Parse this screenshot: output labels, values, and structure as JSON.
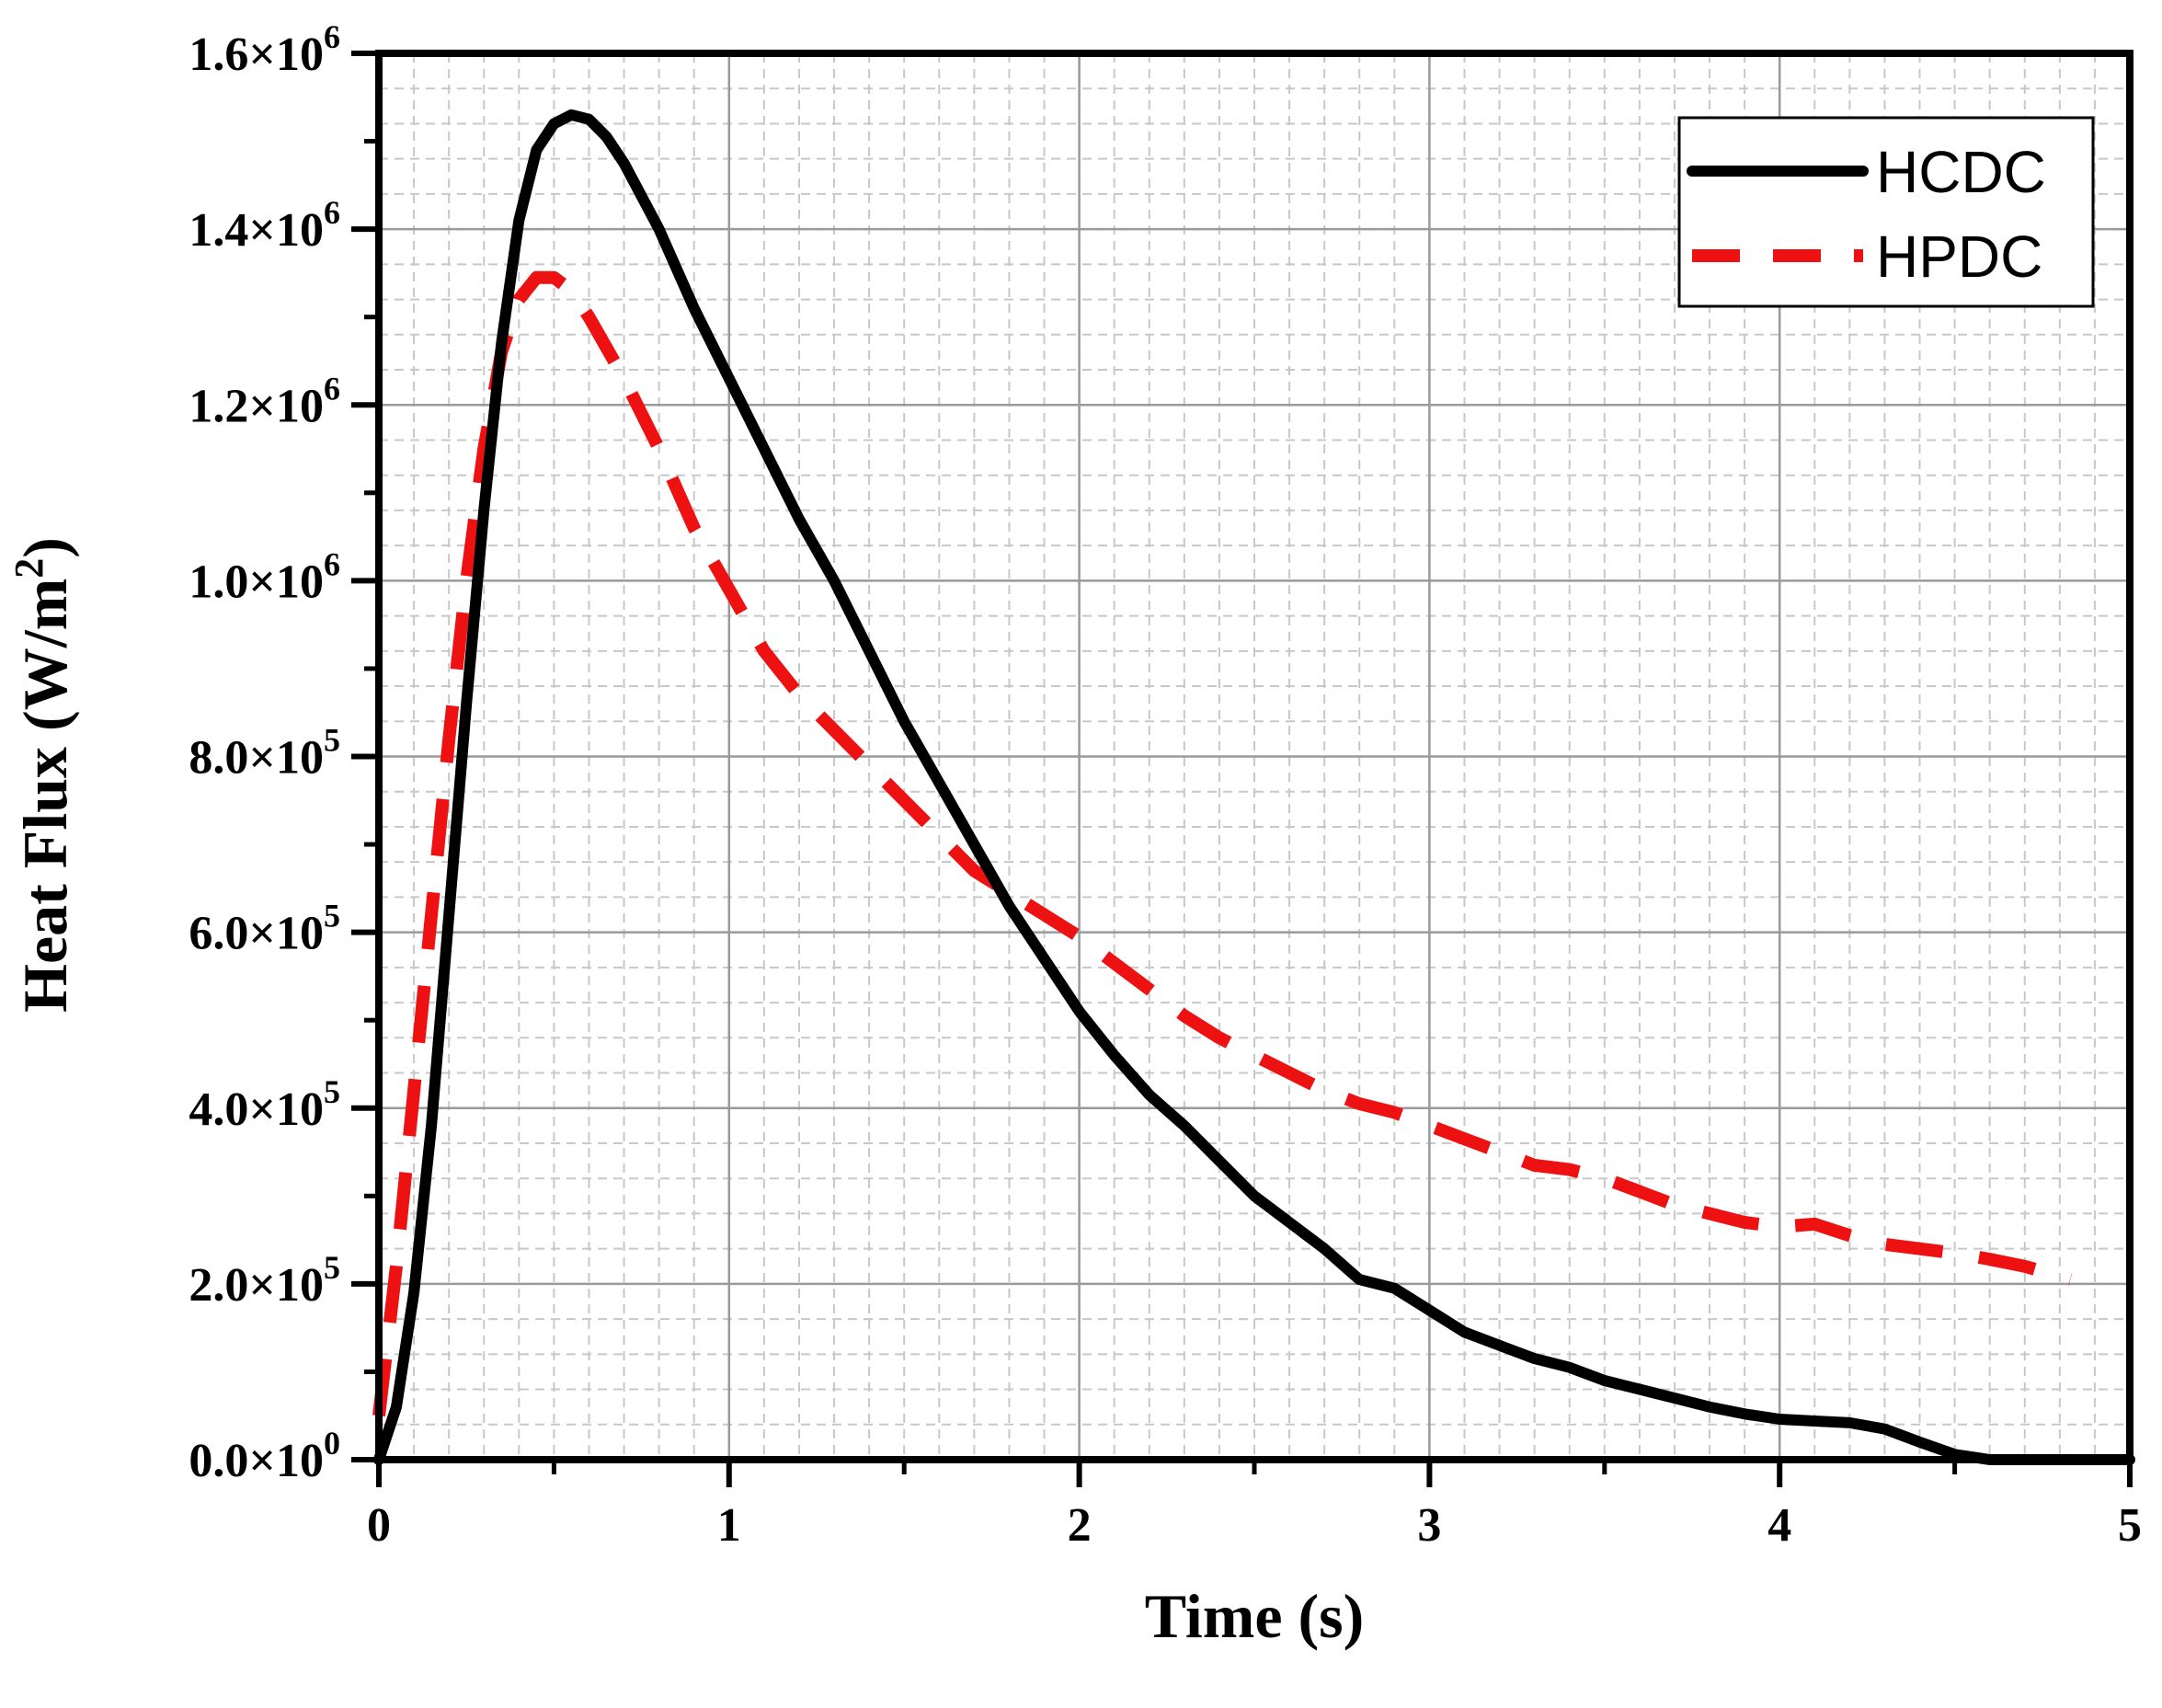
{
  "chart_data": {
    "type": "line",
    "title": "",
    "xlabel": "Time (s)",
    "ylabel": "Heat Flux (W/m²)",
    "ylabel_base": "Heat Flux (W/m",
    "ylabel_sup": "2",
    "ylabel_close": ")",
    "xlim": [
      0,
      5
    ],
    "ylim": [
      0,
      1600000
    ],
    "x_ticks": [
      0,
      1,
      2,
      3,
      4,
      5
    ],
    "x_tick_labels": [
      "0",
      "1",
      "2",
      "3",
      "4",
      "5"
    ],
    "y_ticks": [
      0,
      200000,
      400000,
      600000,
      800000,
      1000000,
      1200000,
      1400000,
      1600000
    ],
    "y_tick_labels": [
      {
        "mantissa": "0.0",
        "times": "×10",
        "exp": "0"
      },
      {
        "mantissa": "2.0",
        "times": "×10",
        "exp": "5"
      },
      {
        "mantissa": "4.0",
        "times": "×10",
        "exp": "5"
      },
      {
        "mantissa": "6.0",
        "times": "×10",
        "exp": "5"
      },
      {
        "mantissa": "8.0",
        "times": "×10",
        "exp": "5"
      },
      {
        "mantissa": "1.0",
        "times": "×10",
        "exp": "6"
      },
      {
        "mantissa": "1.2",
        "times": "×10",
        "exp": "6"
      },
      {
        "mantissa": "1.4",
        "times": "×10",
        "exp": "6"
      },
      {
        "mantissa": "1.6",
        "times": "×10",
        "exp": "6"
      }
    ],
    "minor_x_step": 0.1,
    "minor_y_step": 40000,
    "grid": true,
    "legend_position": "top-right",
    "series": [
      {
        "name": "HCDC",
        "color": "#000000",
        "dash": "solid",
        "points": [
          [
            0.0,
            0
          ],
          [
            0.05,
            60000
          ],
          [
            0.1,
            190000
          ],
          [
            0.15,
            380000
          ],
          [
            0.2,
            620000
          ],
          [
            0.25,
            860000
          ],
          [
            0.3,
            1080000
          ],
          [
            0.35,
            1270000
          ],
          [
            0.4,
            1410000
          ],
          [
            0.45,
            1490000
          ],
          [
            0.5,
            1520000
          ],
          [
            0.55,
            1530000
          ],
          [
            0.6,
            1525000
          ],
          [
            0.65,
            1505000
          ],
          [
            0.7,
            1475000
          ],
          [
            0.8,
            1400000
          ],
          [
            0.9,
            1310000
          ],
          [
            1.0,
            1230000
          ],
          [
            1.1,
            1150000
          ],
          [
            1.2,
            1070000
          ],
          [
            1.3,
            1000000
          ],
          [
            1.4,
            920000
          ],
          [
            1.5,
            840000
          ],
          [
            1.6,
            770000
          ],
          [
            1.7,
            700000
          ],
          [
            1.8,
            630000
          ],
          [
            1.9,
            570000
          ],
          [
            2.0,
            510000
          ],
          [
            2.1,
            460000
          ],
          [
            2.2,
            415000
          ],
          [
            2.3,
            380000
          ],
          [
            2.4,
            340000
          ],
          [
            2.5,
            300000
          ],
          [
            2.6,
            270000
          ],
          [
            2.7,
            240000
          ],
          [
            2.8,
            205000
          ],
          [
            2.9,
            195000
          ],
          [
            3.0,
            170000
          ],
          [
            3.1,
            145000
          ],
          [
            3.2,
            130000
          ],
          [
            3.3,
            115000
          ],
          [
            3.4,
            105000
          ],
          [
            3.5,
            90000
          ],
          [
            3.6,
            80000
          ],
          [
            3.7,
            70000
          ],
          [
            3.8,
            60000
          ],
          [
            3.9,
            52000
          ],
          [
            4.0,
            46000
          ],
          [
            4.1,
            44000
          ],
          [
            4.2,
            42000
          ],
          [
            4.3,
            35000
          ],
          [
            4.4,
            20000
          ],
          [
            4.5,
            6000
          ],
          [
            4.6,
            0
          ],
          [
            4.8,
            0
          ],
          [
            5.0,
            0
          ]
        ]
      },
      {
        "name": "HPDC",
        "color": "#ee1111",
        "dash": "dashed",
        "points": [
          [
            0.0,
            50000
          ],
          [
            0.05,
            220000
          ],
          [
            0.1,
            420000
          ],
          [
            0.15,
            620000
          ],
          [
            0.2,
            820000
          ],
          [
            0.25,
            1000000
          ],
          [
            0.3,
            1150000
          ],
          [
            0.35,
            1260000
          ],
          [
            0.4,
            1320000
          ],
          [
            0.45,
            1345000
          ],
          [
            0.5,
            1345000
          ],
          [
            0.55,
            1330000
          ],
          [
            0.6,
            1300000
          ],
          [
            0.7,
            1230000
          ],
          [
            0.8,
            1150000
          ],
          [
            0.9,
            1060000
          ],
          [
            1.0,
            990000
          ],
          [
            1.1,
            920000
          ],
          [
            1.2,
            870000
          ],
          [
            1.3,
            830000
          ],
          [
            1.4,
            790000
          ],
          [
            1.5,
            750000
          ],
          [
            1.6,
            710000
          ],
          [
            1.7,
            670000
          ],
          [
            1.8,
            645000
          ],
          [
            1.9,
            620000
          ],
          [
            2.0,
            595000
          ],
          [
            2.1,
            565000
          ],
          [
            2.2,
            535000
          ],
          [
            2.3,
            505000
          ],
          [
            2.4,
            480000
          ],
          [
            2.5,
            460000
          ],
          [
            2.6,
            440000
          ],
          [
            2.7,
            420000
          ],
          [
            2.8,
            405000
          ],
          [
            2.9,
            395000
          ],
          [
            3.0,
            380000
          ],
          [
            3.1,
            365000
          ],
          [
            3.2,
            350000
          ],
          [
            3.3,
            335000
          ],
          [
            3.4,
            330000
          ],
          [
            3.5,
            320000
          ],
          [
            3.6,
            305000
          ],
          [
            3.7,
            290000
          ],
          [
            3.8,
            280000
          ],
          [
            3.9,
            270000
          ],
          [
            4.0,
            265000
          ],
          [
            4.1,
            268000
          ],
          [
            4.2,
            255000
          ],
          [
            4.3,
            245000
          ],
          [
            4.4,
            240000
          ],
          [
            4.5,
            235000
          ],
          [
            4.6,
            228000
          ],
          [
            4.7,
            220000
          ],
          [
            4.83,
            205000
          ]
        ]
      }
    ]
  }
}
